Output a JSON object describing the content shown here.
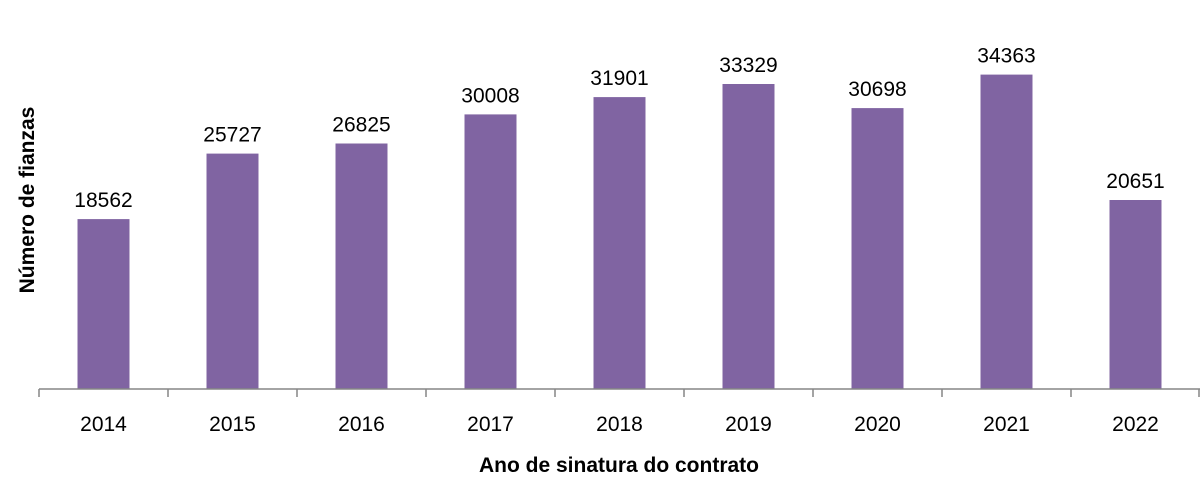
{
  "chart_data": {
    "type": "bar",
    "categories": [
      "2014",
      "2015",
      "2016",
      "2017",
      "2018",
      "2019",
      "2020",
      "2021",
      "2022"
    ],
    "values": [
      18562,
      25727,
      26825,
      30008,
      31901,
      33329,
      30698,
      34363,
      20651
    ],
    "data_labels": [
      "18562",
      "25727",
      "26825",
      "30008",
      "31901",
      "33329",
      "30698",
      "34363",
      "20651"
    ],
    "title": "",
    "xlabel": "Ano de sinatura do contrato",
    "ylabel": "Número de  fianzas",
    "ylim": [
      0,
      36500
    ],
    "grid": false,
    "legend": "none",
    "bar_color": "#8064a2",
    "axis_color": "#868686"
  }
}
